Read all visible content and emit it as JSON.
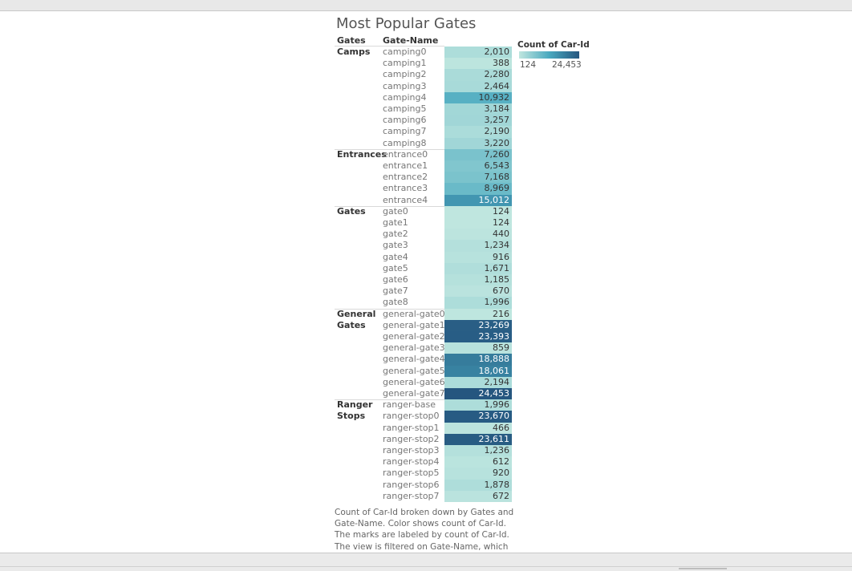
{
  "chart_data": {
    "type": "heatmap",
    "title": "Most Popular Gates",
    "row_headers": [
      "Gates",
      "Gate-Name"
    ],
    "legend": {
      "title": "Count of Car-Id",
      "min_label": "124",
      "max_label": "24,453",
      "min": 124,
      "max": 24453,
      "color_low": "#bfe6df",
      "color_mid": "#4aa9bf",
      "color_high": "#25567f"
    },
    "groups": [
      {
        "label": "Camps",
        "rows": [
          {
            "name": "camping0",
            "value": 2010,
            "label": "2,010"
          },
          {
            "name": "camping1",
            "value": 388,
            "label": "388"
          },
          {
            "name": "camping2",
            "value": 2280,
            "label": "2,280"
          },
          {
            "name": "camping3",
            "value": 2464,
            "label": "2,464"
          },
          {
            "name": "camping4",
            "value": 10932,
            "label": "10,932"
          },
          {
            "name": "camping5",
            "value": 3184,
            "label": "3,184"
          },
          {
            "name": "camping6",
            "value": 3257,
            "label": "3,257"
          },
          {
            "name": "camping7",
            "value": 2190,
            "label": "2,190"
          },
          {
            "name": "camping8",
            "value": 3220,
            "label": "3,220"
          }
        ]
      },
      {
        "label": "Entrances",
        "rows": [
          {
            "name": "entrance0",
            "value": 7260,
            "label": "7,260"
          },
          {
            "name": "entrance1",
            "value": 6543,
            "label": "6,543"
          },
          {
            "name": "entrance2",
            "value": 7168,
            "label": "7,168"
          },
          {
            "name": "entrance3",
            "value": 8969,
            "label": "8,969"
          },
          {
            "name": "entrance4",
            "value": 15012,
            "label": "15,012"
          }
        ]
      },
      {
        "label": "Gates",
        "rows": [
          {
            "name": "gate0",
            "value": 124,
            "label": "124"
          },
          {
            "name": "gate1",
            "value": 124,
            "label": "124"
          },
          {
            "name": "gate2",
            "value": 440,
            "label": "440"
          },
          {
            "name": "gate3",
            "value": 1234,
            "label": "1,234"
          },
          {
            "name": "gate4",
            "value": 916,
            "label": "916"
          },
          {
            "name": "gate5",
            "value": 1671,
            "label": "1,671"
          },
          {
            "name": "gate6",
            "value": 1185,
            "label": "1,185"
          },
          {
            "name": "gate7",
            "value": 670,
            "label": "670"
          },
          {
            "name": "gate8",
            "value": 1996,
            "label": "1,996"
          }
        ]
      },
      {
        "label": "General Gates",
        "rows": [
          {
            "name": "general-gate0",
            "value": 216,
            "label": "216"
          },
          {
            "name": "general-gate1",
            "value": 23269,
            "label": "23,269"
          },
          {
            "name": "general-gate2",
            "value": 23393,
            "label": "23,393"
          },
          {
            "name": "general-gate3",
            "value": 859,
            "label": "859"
          },
          {
            "name": "general-gate4",
            "value": 18888,
            "label": "18,888"
          },
          {
            "name": "general-gate5",
            "value": 18061,
            "label": "18,061"
          },
          {
            "name": "general-gate6",
            "value": 2194,
            "label": "2,194"
          },
          {
            "name": "general-gate7",
            "value": 24453,
            "label": "24,453"
          }
        ]
      },
      {
        "label": "Ranger Stops",
        "rows": [
          {
            "name": "ranger-base",
            "value": 1996,
            "label": "1,996"
          },
          {
            "name": "ranger-stop0",
            "value": 23670,
            "label": "23,670"
          },
          {
            "name": "ranger-stop1",
            "value": 466,
            "label": "466"
          },
          {
            "name": "ranger-stop2",
            "value": 23611,
            "label": "23,611"
          },
          {
            "name": "ranger-stop3",
            "value": 1236,
            "label": "1,236"
          },
          {
            "name": "ranger-stop4",
            "value": 612,
            "label": "612"
          },
          {
            "name": "ranger-stop5",
            "value": 920,
            "label": "920"
          },
          {
            "name": "ranger-stop6",
            "value": 1878,
            "label": "1,878"
          },
          {
            "name": "ranger-stop7",
            "value": 672,
            "label": "672"
          }
        ]
      }
    ],
    "caption": "Count of Car-Id broken down by Gates and Gate-Name.  Color shows count of Car-Id.  The marks are labeled by count of Car-Id. The view is filtered on Gate-Name, which excludes Null."
  }
}
